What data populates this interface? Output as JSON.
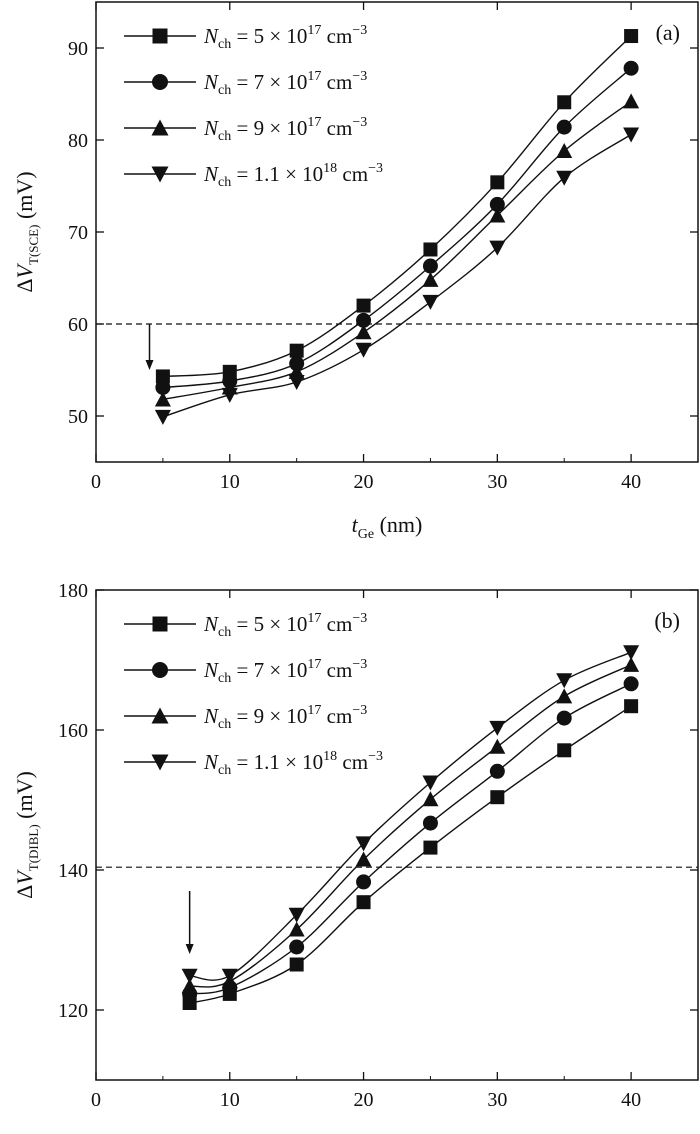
{
  "chart_data": [
    {
      "type": "line",
      "panel_label": "(a)",
      "xlabel": {
        "base": "t",
        "sub": "Ge",
        "unit": "(nm)"
      },
      "ylabel": {
        "prefix": "Δ",
        "base": "V",
        "sub": "T(SCE)",
        "unit": "(mV)"
      },
      "xlim": [
        0,
        45
      ],
      "ylim": [
        45,
        95
      ],
      "xticks": [
        0,
        10,
        20,
        30,
        40
      ],
      "yticks": [
        50,
        60,
        70,
        80,
        90
      ],
      "x": [
        5,
        10,
        15,
        20,
        25,
        30,
        35,
        40
      ],
      "reference_line": 60,
      "arrow": {
        "x": 4,
        "from": 60,
        "to": 55
      },
      "grid": false,
      "legend": "top-left",
      "series": [
        {
          "label_base": "N",
          "label_sub": "ch",
          "label_eq": " = 5 × 10",
          "label_exp": "17",
          "label_unit": " cm",
          "label_unit_exp": "−3",
          "marker": "square",
          "values": [
            54.3,
            54.8,
            57.1,
            62.0,
            68.1,
            75.4,
            84.1,
            91.3
          ]
        },
        {
          "label_base": "N",
          "label_sub": "ch",
          "label_eq": " = 7 × 10",
          "label_exp": "17",
          "label_unit": " cm",
          "label_unit_exp": "−3",
          "marker": "circle",
          "values": [
            53.1,
            53.8,
            55.7,
            60.4,
            66.3,
            73.0,
            81.4,
            87.8
          ]
        },
        {
          "label_base": "N",
          "label_sub": "ch",
          "label_eq": " = 9 × 10",
          "label_exp": "17",
          "label_unit": " cm",
          "label_unit_exp": "−3",
          "marker": "triangle-up",
          "values": [
            51.8,
            53.1,
            54.8,
            59.1,
            64.8,
            71.8,
            78.8,
            84.2
          ]
        },
        {
          "label_base": "N",
          "label_sub": "ch",
          "label_eq": " = 1.1 × 10",
          "label_exp": "18",
          "label_unit": " cm",
          "label_unit_exp": "−3",
          "marker": "triangle-down",
          "values": [
            49.9,
            52.3,
            53.7,
            57.2,
            62.4,
            68.3,
            75.9,
            80.6
          ]
        }
      ]
    },
    {
      "type": "line",
      "panel_label": "(b)",
      "xlabel": {
        "base": "t",
        "sub": "Ge",
        "unit": "(nm)"
      },
      "ylabel": {
        "prefix": "Δ",
        "base": "V",
        "sub": "T(DIBL)",
        "unit": "(mV)"
      },
      "xlim": [
        0,
        45
      ],
      "ylim": [
        110,
        180
      ],
      "xticks": [
        0,
        10,
        20,
        30,
        40
      ],
      "yticks": [
        120,
        140,
        160,
        180
      ],
      "x": [
        7,
        10,
        15,
        20,
        25,
        30,
        35,
        40
      ],
      "reference_line": 140.4,
      "arrow": {
        "x": 7,
        "from": 137,
        "to": 128
      },
      "grid": false,
      "legend": "top-left",
      "series": [
        {
          "label_base": "N",
          "label_sub": "ch",
          "label_eq": " = 5 × 10",
          "label_exp": "17",
          "label_unit": " cm",
          "label_unit_exp": "−3",
          "marker": "square",
          "values": [
            121.0,
            122.3,
            126.5,
            135.4,
            143.2,
            150.4,
            157.1,
            163.4
          ]
        },
        {
          "label_base": "N",
          "label_sub": "ch",
          "label_eq": " = 7 × 10",
          "label_exp": "17",
          "label_unit": " cm",
          "label_unit_exp": "−3",
          "marker": "circle",
          "values": [
            122.3,
            123.2,
            129.0,
            138.3,
            146.7,
            154.1,
            161.7,
            166.6
          ]
        },
        {
          "label_base": "N",
          "label_sub": "ch",
          "label_eq": " = 9 × 10",
          "label_exp": "17",
          "label_unit": " cm",
          "label_unit_exp": "−3",
          "marker": "triangle-up",
          "values": [
            123.4,
            124.1,
            131.5,
            141.5,
            150.1,
            157.6,
            164.8,
            169.3
          ]
        },
        {
          "label_base": "N",
          "label_sub": "ch",
          "label_eq": " = 1.1 × 10",
          "label_exp": "18",
          "label_unit": " cm",
          "label_unit_exp": "−3",
          "marker": "triangle-down",
          "values": [
            124.9,
            124.9,
            133.6,
            143.8,
            152.5,
            160.3,
            167.1,
            171.1
          ]
        }
      ]
    }
  ]
}
